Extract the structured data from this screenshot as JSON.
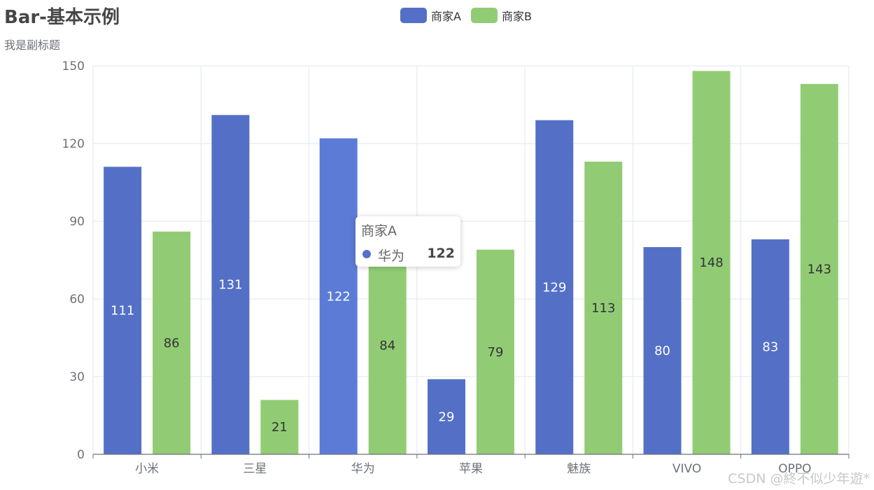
{
  "chart_data": {
    "type": "bar",
    "title": "Bar-基本示例",
    "subtitle": "我是副标题",
    "categories": [
      "小米",
      "三星",
      "华为",
      "苹果",
      "魅族",
      "VIVO",
      "OPPO"
    ],
    "series": [
      {
        "name": "商家A",
        "color": "#5470c6",
        "values": [
          111,
          131,
          122,
          29,
          129,
          80,
          83
        ]
      },
      {
        "name": "商家B",
        "color": "#91cc75",
        "values": [
          86,
          21,
          84,
          79,
          113,
          148,
          143
        ]
      }
    ],
    "ylim": [
      0,
      150
    ],
    "yticks": [
      0,
      30,
      60,
      90,
      120,
      150
    ],
    "legend_position": "top-center",
    "grid": true
  },
  "tooltip": {
    "series_name": "商家A",
    "category": "华为",
    "value": "122",
    "color": "#5470c6"
  },
  "watermark": "CSDN @終不似少年遊*"
}
